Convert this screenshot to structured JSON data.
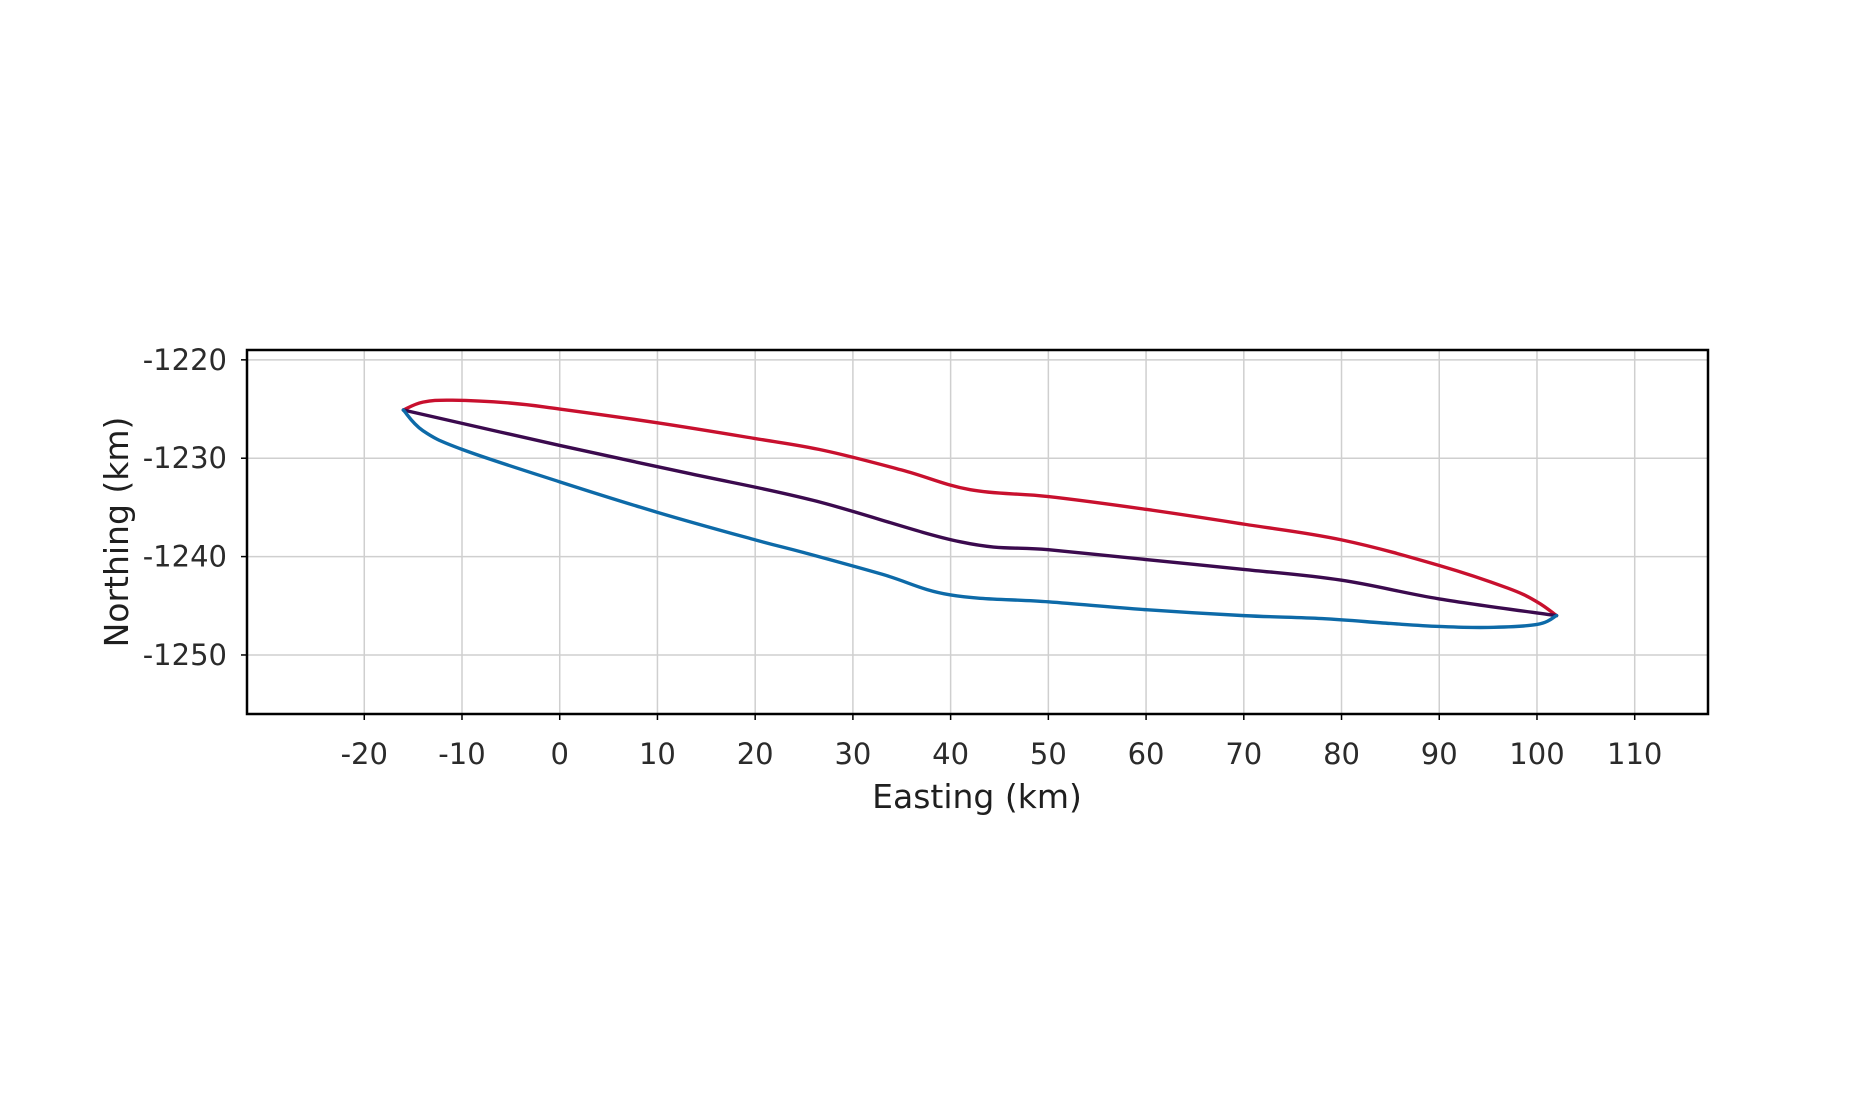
{
  "chart_data": {
    "type": "line",
    "title": "",
    "xlabel": "Easting (km)",
    "ylabel": "Northing (km)",
    "xlim": [
      -32,
      117.5
    ],
    "ylim": [
      -1256,
      -1219
    ],
    "xticks": [
      -20,
      -10,
      0,
      10,
      20,
      30,
      40,
      50,
      60,
      70,
      80,
      90,
      100,
      110
    ],
    "yticks": [
      -1220,
      -1230,
      -1240,
      -1250
    ],
    "xtick_labels": [
      "-20",
      "-10",
      "0",
      "10",
      "20",
      "30",
      "40",
      "50",
      "60",
      "70",
      "80",
      "90",
      "100",
      "110"
    ],
    "ytick_labels": [
      "-1220",
      "-1230",
      "-1240",
      "-1250"
    ],
    "grid": true,
    "legend": "none",
    "series": [
      {
        "color": "#c8102e",
        "x": [
          -16,
          -14,
          -11,
          -5,
          0,
          10,
          20,
          27,
          35,
          42,
          50,
          60,
          70,
          80,
          90,
          97,
          100,
          102
        ],
        "y": [
          -1225.1,
          -1224.3,
          -1224.1,
          -1224.4,
          -1225.0,
          -1226.4,
          -1228.0,
          -1229.2,
          -1231.2,
          -1233.2,
          -1233.9,
          -1235.2,
          -1236.7,
          -1238.3,
          -1240.9,
          -1243.2,
          -1244.6,
          -1246.0
        ]
      },
      {
        "color": "#3b0a4e",
        "x": [
          -16,
          0,
          13,
          26,
          41,
          50,
          60,
          70,
          80,
          90,
          102
        ],
        "y": [
          -1225.1,
          -1228.7,
          -1231.5,
          -1234.3,
          -1238.5,
          -1239.3,
          -1240.3,
          -1241.3,
          -1242.4,
          -1244.3,
          -1246.0
        ]
      },
      {
        "color": "#0d6aa8",
        "x": [
          -16,
          -14,
          -10,
          0,
          10,
          20,
          25,
          33,
          40,
          50,
          60,
          70,
          78,
          85,
          90,
          95,
          100,
          102
        ],
        "y": [
          -1225.1,
          -1227.2,
          -1229.1,
          -1232.4,
          -1235.5,
          -1238.3,
          -1239.6,
          -1241.8,
          -1243.9,
          -1244.6,
          -1245.4,
          -1246.0,
          -1246.3,
          -1246.8,
          -1247.1,
          -1247.2,
          -1246.9,
          -1246.0
        ]
      }
    ]
  }
}
